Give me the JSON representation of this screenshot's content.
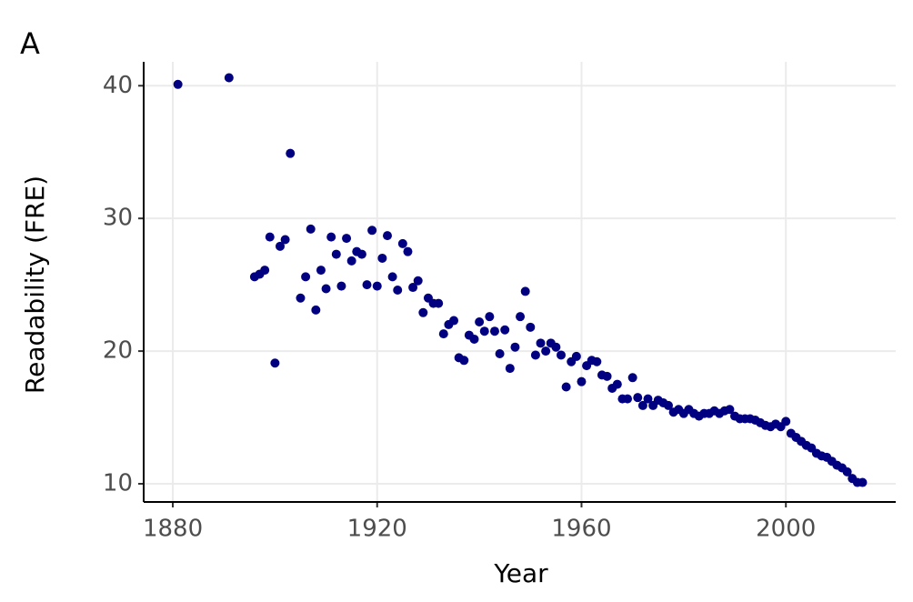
{
  "chart_data": {
    "type": "scatter",
    "title": "A",
    "x_label": "Year",
    "y_label": "Readability (FRE)",
    "x": [
      1881,
      1891,
      1903,
      1896,
      1897,
      1898,
      1899,
      1900,
      1901,
      1902,
      1905,
      1906,
      1907,
      1908,
      1909,
      1910,
      1911,
      1912,
      1913,
      1914,
      1915,
      1916,
      1917,
      1918,
      1919,
      1920,
      1921,
      1922,
      1923,
      1924,
      1925,
      1926,
      1927,
      1928,
      1929,
      1930,
      1931,
      1932,
      1933,
      1934,
      1935,
      1936,
      1937,
      1938,
      1939,
      1940,
      1941,
      1942,
      1943,
      1944,
      1945,
      1946,
      1947,
      1948,
      1949,
      1950,
      1951,
      1952,
      1953,
      1954,
      1955,
      1956,
      1957,
      1958,
      1959,
      1960,
      1961,
      1962,
      1963,
      1964,
      1965,
      1966,
      1967,
      1968,
      1969,
      1970,
      1971,
      1972,
      1973,
      1974,
      1975,
      1976,
      1977,
      1978,
      1979,
      1980,
      1981,
      1982,
      1983,
      1984,
      1985,
      1986,
      1987,
      1988,
      1989,
      1990,
      1991,
      1992,
      1993,
      1994,
      1995,
      1996,
      1997,
      1998,
      1999,
      2000,
      2001,
      2002,
      2003,
      2004,
      2005,
      2006,
      2007,
      2008,
      2009,
      2010,
      2011,
      2012,
      2013,
      2014,
      2015
    ],
    "values": [
      40.1,
      40.6,
      34.9,
      25.6,
      25.8,
      26.1,
      28.6,
      19.1,
      27.9,
      28.4,
      24.0,
      25.6,
      29.2,
      23.1,
      26.1,
      24.7,
      28.6,
      27.3,
      24.9,
      28.5,
      26.8,
      27.5,
      27.3,
      25.0,
      29.1,
      24.9,
      27.0,
      28.7,
      25.6,
      24.6,
      28.1,
      27.5,
      24.8,
      25.3,
      22.9,
      24.0,
      23.6,
      23.6,
      21.3,
      22.0,
      22.3,
      19.5,
      19.3,
      21.2,
      20.9,
      22.2,
      21.5,
      22.6,
      21.5,
      19.8,
      21.6,
      18.7,
      20.3,
      22.6,
      24.5,
      21.8,
      19.7,
      20.6,
      20.0,
      20.6,
      20.3,
      19.7,
      17.3,
      19.2,
      19.6,
      17.7,
      18.9,
      19.3,
      19.2,
      18.2,
      18.1,
      17.2,
      17.5,
      16.4,
      16.4,
      18.0,
      16.5,
      15.9,
      16.4,
      15.9,
      16.3,
      16.1,
      15.9,
      15.4,
      15.6,
      15.3,
      15.6,
      15.3,
      15.1,
      15.3,
      15.3,
      15.5,
      15.3,
      15.5,
      15.6,
      15.1,
      14.9,
      14.9,
      14.9,
      14.8,
      14.6,
      14.4,
      14.3,
      14.5,
      14.3,
      14.7,
      13.8,
      13.5,
      13.2,
      12.9,
      12.7,
      12.3,
      12.1,
      12.0,
      11.7,
      11.4,
      11.2,
      10.9,
      10.4,
      10.1,
      10.1
    ],
    "color": "#000080",
    "xlim": [
      1874.3,
      2021.5
    ],
    "xticks": [
      1880,
      1920,
      1960,
      2000
    ],
    "ylim": [
      8.63,
      41.8
    ],
    "yticks": [
      10,
      20,
      30,
      40
    ],
    "grid": true
  }
}
